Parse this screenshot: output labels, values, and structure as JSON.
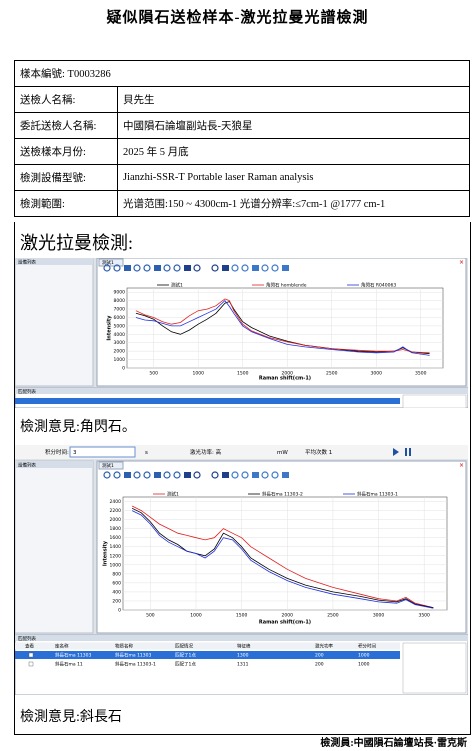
{
  "title": "疑似隕石送检样本-激光拉曼光譜檢測",
  "table": {
    "rows": [
      [
        "樣本編號: T0003286",
        ""
      ],
      [
        "送檢人名稱:",
        "貝先生"
      ],
      [
        "委託送檢人名稱:",
        "中國隕石論壇副站長-天狼星"
      ],
      [
        "送檢樣本月份:",
        "2025 年 5 月底"
      ],
      [
        "檢測設備型號:",
        "Jianzhi-SSR-T Portable laser Raman analysis"
      ],
      [
        "檢測範圍:",
        "光谱范围:150 ~ 4300cm-1 光谱分辨率:≤7cm-1 @1777 cm-1"
      ]
    ]
  },
  "section": "激光拉曼檢測:",
  "opinions": [
    "檢測意見:角閃石。",
    "檢測意見:斜長石"
  ],
  "footer": "檢測員:中國隕石論壇站長·雷克斯",
  "screens": [
    {
      "panel": "設備列表",
      "window": "測試1",
      "matches": "匹配列表"
    },
    {
      "panel": "設備列表",
      "window": "測試1",
      "matches": "匹配列表",
      "topbar": [
        "积分时间:",
        "3",
        "s",
        "激光功率: 高",
        "mW",
        "平均次数 1"
      ],
      "table": {
        "headers": [
          "查看",
          "库名称",
          "物质名称",
          "匹配情况",
          "特征峰",
          "激光功率",
          "积分时间"
        ],
        "rows": [
          [
            "斜長石ma 11303",
            "斜長石ma 11303",
            "匹配了1点",
            "1300",
            "200",
            "1000"
          ],
          [
            "斜長石ma 11",
            "斜長石ma 11303-1",
            "匹配了1点",
            "1311",
            "200",
            "1000"
          ]
        ]
      }
    }
  ],
  "chart_data": [
    {
      "type": "line",
      "xlabel": "Raman shift(cm-1)",
      "ylabel": "Intensity",
      "x": [
        300,
        400,
        500,
        600,
        700,
        800,
        900,
        1000,
        1100,
        1200,
        1300,
        1350,
        1400,
        1500,
        1600,
        1800,
        2000,
        2200,
        2500,
        2800,
        3000,
        3200,
        3300,
        3400,
        3600
      ],
      "series": [
        {
          "name": "測試1",
          "color": "#000000",
          "values": [
            6500,
            6200,
            5800,
            5000,
            4300,
            4000,
            4500,
            5200,
            5800,
            6500,
            7700,
            7900,
            7000,
            5500,
            4800,
            3800,
            3200,
            2700,
            2300,
            2000,
            1900,
            2000,
            2400,
            1900,
            1700
          ]
        },
        {
          "name": "角閃石 hornblende",
          "color": "#e02020",
          "values": [
            6800,
            6300,
            6000,
            5500,
            5200,
            5400,
            6200,
            6800,
            7000,
            7400,
            8200,
            8000,
            6800,
            5200,
            4400,
            3600,
            3100,
            2700,
            2300,
            2100,
            2000,
            2000,
            2200,
            1900,
            1800
          ]
        },
        {
          "name": "角閃石 R040063",
          "color": "#2030e0",
          "values": [
            6000,
            5700,
            5600,
            5300,
            5000,
            5000,
            5500,
            6000,
            6500,
            7000,
            8000,
            7300,
            6500,
            5000,
            4300,
            3500,
            2800,
            2500,
            2200,
            1900,
            1800,
            1900,
            2500,
            1800,
            1500
          ]
        }
      ],
      "xlim": [
        200,
        3750
      ],
      "xticks": [
        500,
        1000,
        1500,
        2000,
        2500,
        3000,
        3500
      ],
      "ylim": [
        0,
        9500
      ],
      "yticks": [
        0,
        1000,
        2000,
        3000,
        4000,
        5000,
        6000,
        7000,
        8000,
        9000
      ],
      "grid": true
    },
    {
      "type": "line",
      "xlabel": "Raman shift(cm-1)",
      "ylabel": "Intensity",
      "x": [
        300,
        400,
        500,
        600,
        700,
        800,
        900,
        1000,
        1100,
        1200,
        1300,
        1400,
        1500,
        1600,
        1800,
        2000,
        2200,
        2500,
        2800,
        3000,
        3200,
        3300,
        3400,
        3600
      ],
      "series": [
        {
          "name": "測試1",
          "color": "#e02020",
          "values": [
            2300,
            2200,
            2050,
            1900,
            1800,
            1700,
            1650,
            1600,
            1550,
            1600,
            1800,
            1700,
            1600,
            1400,
            1150,
            900,
            700,
            500,
            350,
            250,
            200,
            280,
            150,
            50
          ]
        },
        {
          "name": "斜長石ma 11303-2",
          "color": "#000000",
          "values": [
            2250,
            2150,
            1950,
            1700,
            1550,
            1450,
            1300,
            1250,
            1200,
            1350,
            1700,
            1600,
            1400,
            1150,
            900,
            700,
            550,
            400,
            300,
            220,
            180,
            250,
            130,
            50
          ]
        },
        {
          "name": "斜長石ma 11303-1",
          "color": "#2030e0",
          "values": [
            2200,
            2100,
            1900,
            1650,
            1500,
            1400,
            1300,
            1250,
            1150,
            1300,
            1600,
            1550,
            1350,
            1100,
            850,
            650,
            500,
            350,
            250,
            180,
            150,
            230,
            120,
            40
          ]
        }
      ],
      "xlim": [
        200,
        3750
      ],
      "xticks": [
        500,
        1000,
        1500,
        2000,
        2500,
        3000,
        3500
      ],
      "ylim": [
        0,
        2500
      ],
      "yticks": [
        0,
        200,
        400,
        600,
        800,
        1000,
        1200,
        1400,
        1600,
        1800,
        2000,
        2200,
        2400
      ],
      "grid": true
    }
  ]
}
